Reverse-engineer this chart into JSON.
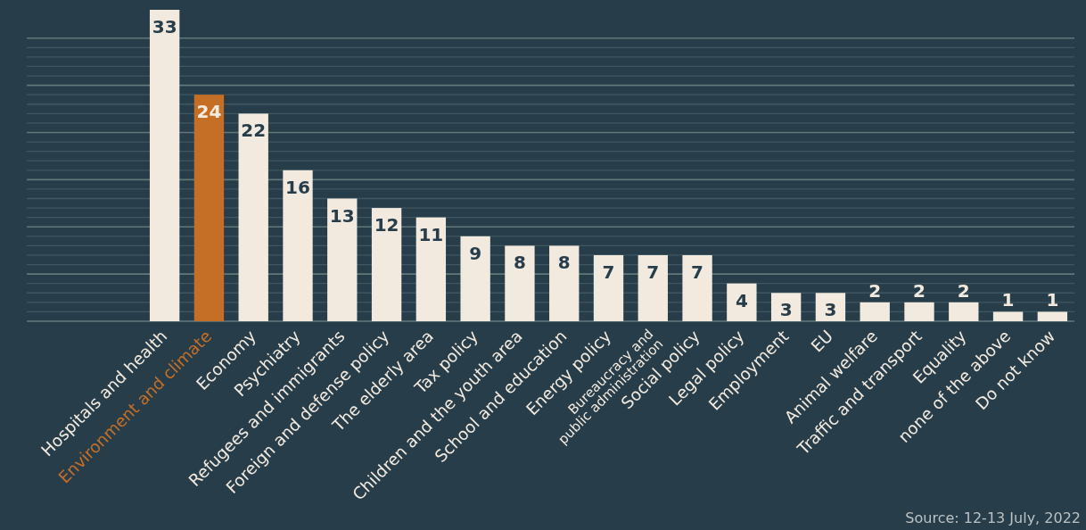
{
  "chart_data": {
    "type": "bar",
    "categories": [
      "Hospitals and health",
      "Environment and climate",
      "Economy",
      "Psychiatry",
      "Refugees and immigrants",
      "Foreign and defense policy",
      "The elderly area",
      "Tax policy",
      "Children and the youth area",
      "School and education",
      "Energy policy",
      "Bureaucracy and public administration",
      "Social policy",
      "Legal policy",
      "Employment",
      "EU",
      "Animal welfare",
      "Traffic and transport",
      "Equality",
      "none of the above",
      "Do not know"
    ],
    "values": [
      33,
      24,
      22,
      16,
      13,
      12,
      11,
      9,
      8,
      8,
      7,
      7,
      7,
      4,
      3,
      3,
      2,
      2,
      2,
      1,
      1
    ],
    "colors": [
      "#f2eadf",
      "#c56f26",
      "#f2eadf",
      "#f2eadf",
      "#f2eadf",
      "#f2eadf",
      "#f2eadf",
      "#f2eadf",
      "#f2eadf",
      "#f2eadf",
      "#f2eadf",
      "#f2eadf",
      "#f2eadf",
      "#f2eadf",
      "#f2eadf",
      "#f2eadf",
      "#f2eadf",
      "#f2eadf",
      "#f2eadf",
      "#f2eadf",
      "#f2eadf"
    ],
    "data_labels": true,
    "ylim": [
      0,
      33
    ],
    "yticks": [
      {
        "value": 0,
        "label": null
      },
      {
        "value": 1,
        "label": null
      },
      {
        "value": 2,
        "label": null
      },
      {
        "value": 3,
        "label": null
      },
      {
        "value": 4,
        "label": null
      },
      {
        "value": 5,
        "label": null
      },
      {
        "value": 6,
        "label": null
      },
      {
        "value": 7,
        "label": null
      },
      {
        "value": 8,
        "label": null
      },
      {
        "value": 9,
        "label": null
      },
      {
        "value": 10,
        "label": null
      },
      {
        "value": 11,
        "label": null
      },
      {
        "value": 12,
        "label": null
      },
      {
        "value": 13,
        "label": null
      },
      {
        "value": 14,
        "label": null
      },
      {
        "value": 15,
        "label": null
      },
      {
        "value": 16,
        "label": null
      },
      {
        "value": 17,
        "label": null
      },
      {
        "value": 18,
        "label": null
      },
      {
        "value": 19,
        "label": null
      },
      {
        "value": 20,
        "label": null
      },
      {
        "value": 21,
        "label": null
      },
      {
        "value": 22,
        "label": null
      },
      {
        "value": 23,
        "label": null
      },
      {
        "value": 24,
        "label": null
      },
      {
        "value": 25,
        "label": null
      },
      {
        "value": 26,
        "label": null
      },
      {
        "value": 27,
        "label": null
      },
      {
        "value": 28,
        "label": null
      },
      {
        "value": 29,
        "label": null
      },
      {
        "value": 30,
        "label": null
      }
    ],
    "grid": "y",
    "tick_labels": "x",
    "annotations": [
      "Source: 12-13 July, 2022"
    ]
  }
}
